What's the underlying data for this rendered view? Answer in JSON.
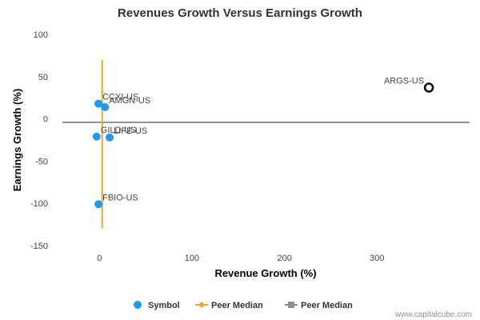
{
  "chart_data": {
    "type": "scatter",
    "title": "Revenues Growth Versus Earnings Growth",
    "xlabel": "Revenue Growth (%)",
    "ylabel": "Earnings Growth (%)",
    "xlim": [
      -40,
      400
    ],
    "ylim": [
      -150,
      100
    ],
    "x_ticks": [
      0,
      100,
      200,
      300
    ],
    "y_ticks": [
      100,
      50,
      0,
      -50,
      -100,
      -150
    ],
    "grid": false,
    "legend_position": "bottom",
    "points": [
      {
        "symbol": "CCXI-US",
        "x": -1,
        "y": 18,
        "highlight": false
      },
      {
        "symbol": "AMGN-US",
        "x": 6,
        "y": 14,
        "highlight": false
      },
      {
        "symbol": "GILD-US",
        "x": -3,
        "y": -21,
        "highlight": false
      },
      {
        "symbol": "LIFE-US",
        "x": 11,
        "y": -22,
        "highlight": false
      },
      {
        "symbol": "FBIO-US",
        "x": -1,
        "y": -101,
        "highlight": false
      },
      {
        "symbol": "ARGS-US",
        "x": 356,
        "y": 37,
        "highlight": true
      }
    ],
    "peer_median_x": {
      "x": 3,
      "y_range": [
        -130,
        70
      ]
    },
    "peer_median_y": {
      "y": -4,
      "x_range": [
        -40,
        400
      ]
    },
    "legend": [
      {
        "label": "Symbol",
        "color": "#1e9be9",
        "marker": "circle"
      },
      {
        "label": "Peer Median",
        "color": "#f5a623",
        "marker": "diamond-line"
      },
      {
        "label": "Peer Median",
        "color": "#8a8f96",
        "marker": "square-line"
      }
    ],
    "colors": {
      "symbol": "#1e9be9",
      "highlight_stroke": "#000000",
      "median_x": "#f5a623",
      "median_y": "#8a8f96"
    }
  },
  "credit": "www.capitalcube.com"
}
